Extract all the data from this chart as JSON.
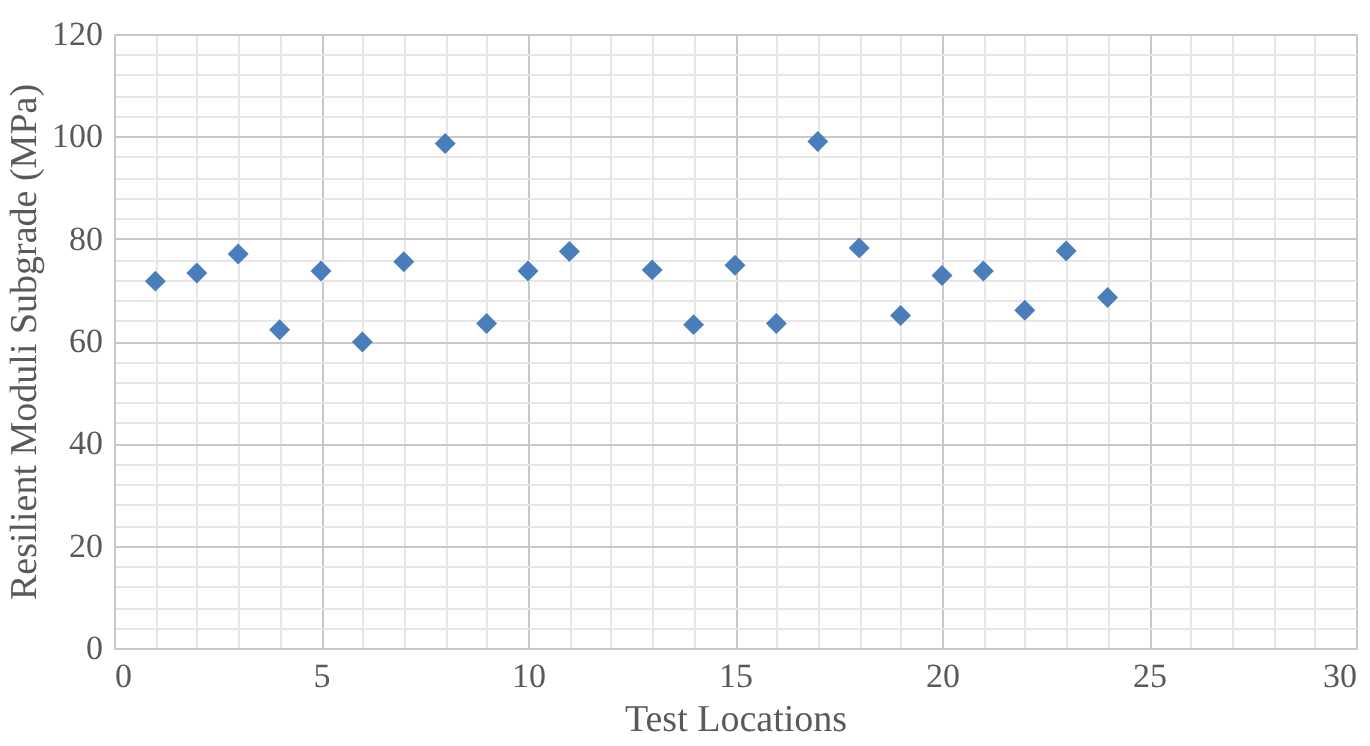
{
  "chart_data": {
    "type": "scatter",
    "xlabel": "Test Locations",
    "ylabel": "Resilient Moduli Subgrade (MPa)",
    "x": [
      1,
      2,
      3,
      4,
      5,
      6,
      7,
      8,
      9,
      10,
      11,
      13,
      14,
      15,
      16,
      17,
      18,
      19,
      20,
      21,
      22,
      23,
      24
    ],
    "series": [
      {
        "color": "#4a7ebb",
        "values": [
          71.7,
          73.3,
          77,
          62.2,
          73.7,
          59.8,
          75.5,
          98.6,
          63.4,
          73.7,
          77.5,
          73.9,
          63.2,
          74.8,
          63.4,
          99,
          78.2,
          65,
          72.8,
          73.7,
          66,
          77.6,
          68.5
        ]
      }
    ],
    "xlim": [
      0,
      30
    ],
    "ylim": [
      0,
      120
    ],
    "xticks": [
      0,
      {
        "value": 1,
        "label": null
      },
      {
        "value": 2,
        "label": null
      },
      {
        "value": 3,
        "label": null
      },
      {
        "value": 4,
        "label": null
      },
      5,
      {
        "value": 6,
        "label": null
      },
      {
        "value": 7,
        "label": null
      },
      {
        "value": 8,
        "label": null
      },
      {
        "value": 9,
        "label": null
      },
      10,
      {
        "value": 11,
        "label": null
      },
      {
        "value": 12,
        "label": null
      },
      {
        "value": 13,
        "label": null
      },
      {
        "value": 14,
        "label": null
      },
      15,
      {
        "value": 16,
        "label": null
      },
      {
        "value": 17,
        "label": null
      },
      {
        "value": 18,
        "label": null
      },
      {
        "value": 19,
        "label": null
      },
      20,
      {
        "value": 21,
        "label": null
      },
      {
        "value": 22,
        "label": null
      },
      {
        "value": 23,
        "label": null
      },
      {
        "value": 24,
        "label": null
      },
      25,
      {
        "value": 26,
        "label": null
      },
      {
        "value": 27,
        "label": null
      },
      {
        "value": 28,
        "label": null
      },
      {
        "value": 29,
        "label": null
      },
      30
    ],
    "yticks": [
      0,
      {
        "value": 4,
        "label": null
      },
      {
        "value": 8,
        "label": null
      },
      {
        "value": 12,
        "label": null
      },
      {
        "value": 16,
        "label": null
      },
      20,
      {
        "value": 24,
        "label": null
      },
      {
        "value": 28,
        "label": null
      },
      {
        "value": 32,
        "label": null
      },
      {
        "value": 36,
        "label": null
      },
      40,
      {
        "value": 44,
        "label": null
      },
      {
        "value": 48,
        "label": null
      },
      {
        "value": 52,
        "label": null
      },
      {
        "value": 56,
        "label": null
      },
      60,
      {
        "value": 64,
        "label": null
      },
      {
        "value": 68,
        "label": null
      },
      {
        "value": 72,
        "label": null
      },
      {
        "value": 76,
        "label": null
      },
      80,
      {
        "value": 84,
        "label": null
      },
      {
        "value": 88,
        "label": null
      },
      {
        "value": 92,
        "label": null
      },
      {
        "value": 96,
        "label": null
      },
      100,
      {
        "value": 104,
        "label": null
      },
      {
        "value": 108,
        "label": null
      },
      {
        "value": 112,
        "label": null
      },
      {
        "value": 116,
        "label": null
      },
      120
    ],
    "grid": true,
    "marker": "diamond"
  }
}
